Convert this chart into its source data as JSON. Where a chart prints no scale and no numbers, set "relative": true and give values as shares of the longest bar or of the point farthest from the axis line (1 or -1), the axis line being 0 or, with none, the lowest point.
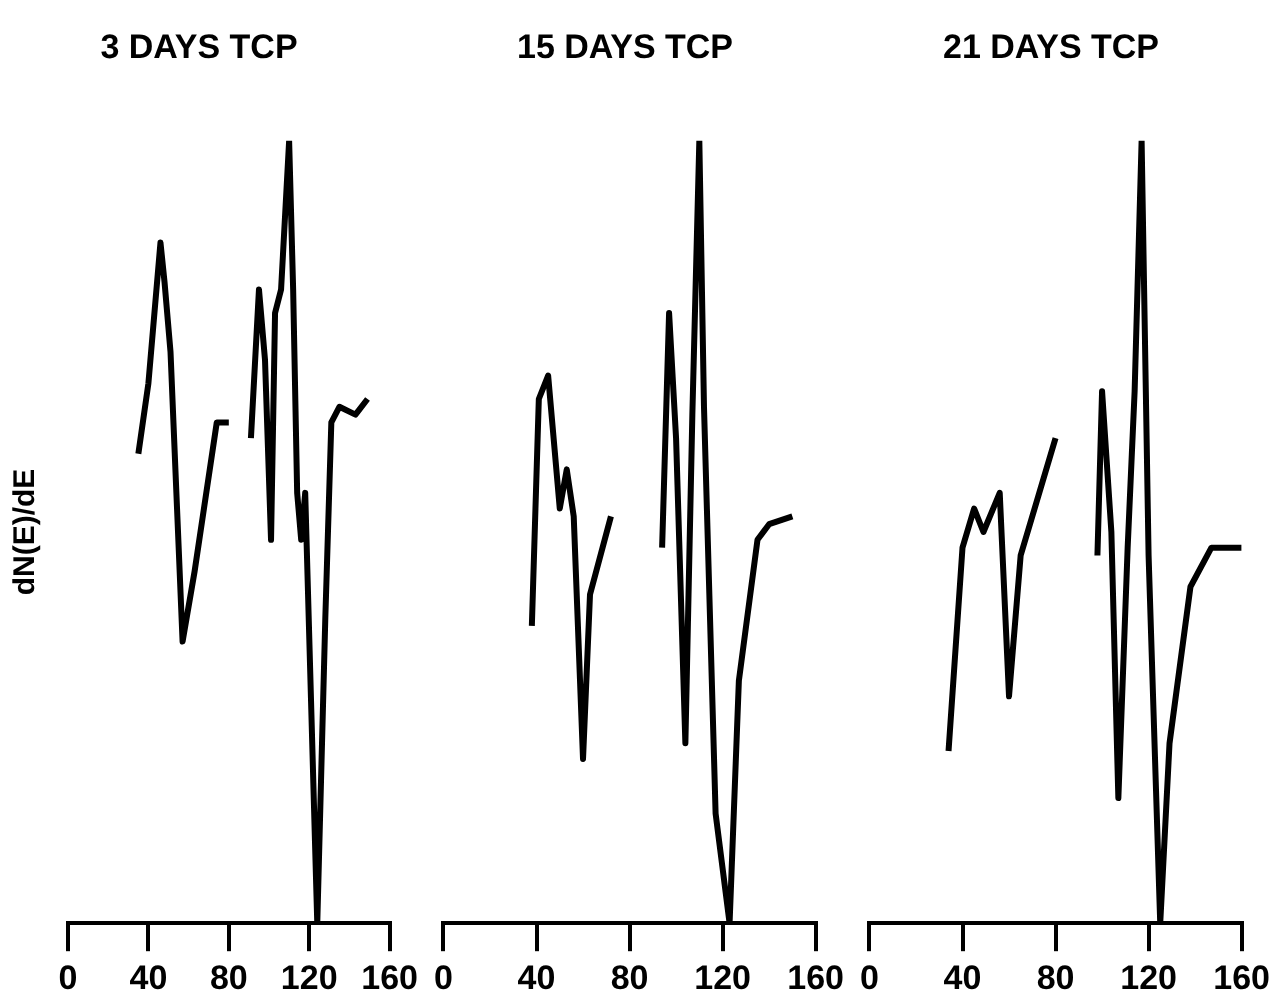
{
  "chart_data": [
    {
      "type": "line",
      "title": "3 DAYS TCP",
      "ylabel": "dN(E)/dE",
      "relative": true,
      "color": "#000000",
      "marker": "none",
      "grid": false,
      "legend": false,
      "tick_labels": "x",
      "x": [
        35,
        40,
        46,
        48,
        51,
        57,
        63,
        74,
        80,
        85,
        91,
        95,
        98,
        101,
        103,
        106,
        110,
        112,
        114,
        116,
        118,
        124,
        128,
        131,
        135,
        143,
        149
      ],
      "values": [
        0.6,
        0.69,
        0.87,
        0.82,
        0.73,
        0.36,
        0.45,
        0.64,
        0.64,
        null,
        0.62,
        0.81,
        0.72,
        0.49,
        0.78,
        0.81,
        1,
        0.81,
        0.55,
        0.49,
        0.55,
        0,
        0.39,
        0.64,
        0.66,
        0.65,
        0.67
      ],
      "xlim": [
        0,
        160
      ],
      "xticks": [
        0,
        40,
        80,
        120,
        160
      ]
    },
    {
      "type": "line",
      "title": "15 DAYS TCP",
      "relative": true,
      "color": "#000000",
      "marker": "none",
      "grid": false,
      "legend": false,
      "tick_labels": "x",
      "x": [
        38,
        41,
        45,
        50,
        53,
        56,
        60,
        63,
        72,
        83,
        94,
        97,
        100,
        104,
        107,
        110,
        112,
        117,
        123,
        127,
        135,
        140,
        150
      ],
      "values": [
        0.38,
        0.67,
        0.7,
        0.53,
        0.58,
        0.52,
        0.21,
        0.42,
        0.52,
        null,
        0.48,
        0.78,
        0.62,
        0.23,
        0.65,
        1,
        0.66,
        0.14,
        0,
        0.31,
        0.49,
        0.51,
        0.52
      ],
      "xlim": [
        0,
        160
      ],
      "xticks": [
        0,
        40,
        80,
        120,
        160
      ]
    },
    {
      "type": "line",
      "title": "21 DAYS TCP",
      "relative": true,
      "color": "#000000",
      "marker": "none",
      "grid": false,
      "legend": false,
      "tick_labels": "x",
      "x": [
        34,
        40,
        45,
        49,
        56,
        60,
        65,
        73,
        80,
        89,
        98,
        100,
        104,
        107,
        111,
        114,
        117,
        120,
        125,
        129,
        138,
        147,
        160
      ],
      "values": [
        0.22,
        0.48,
        0.53,
        0.5,
        0.55,
        0.29,
        0.47,
        0.55,
        0.62,
        null,
        0.47,
        0.68,
        0.5,
        0.16,
        0.48,
        0.68,
        1,
        0.47,
        0,
        0.23,
        0.43,
        0.48,
        0.48
      ],
      "xlim": [
        0,
        160
      ],
      "xticks": [
        0,
        40,
        80,
        120,
        160
      ]
    }
  ]
}
